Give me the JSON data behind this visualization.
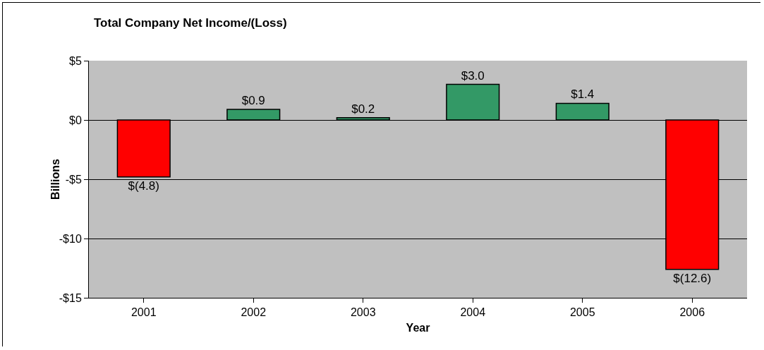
{
  "chart_data": {
    "type": "bar",
    "title": "Total Company Net Income/(Loss)",
    "xlabel": "Year",
    "ylabel": "Billions",
    "categories": [
      "2001",
      "2002",
      "2003",
      "2004",
      "2005",
      "2006"
    ],
    "values": [
      -4.8,
      0.9,
      0.2,
      3.0,
      1.4,
      -12.6
    ],
    "colors": [
      "#ff0000",
      "#339966",
      "#339966",
      "#339966",
      "#339966",
      "#ff0000"
    ],
    "value_labels": [
      "$(4.8)",
      "$0.9",
      "$0.2",
      "$3.0",
      "$1.4",
      "$(12.6)"
    ],
    "ylim": [
      -15,
      5
    ],
    "yticks": [
      {
        "value": -15,
        "label": "-$15"
      },
      {
        "value": -10,
        "label": "-$10"
      },
      {
        "value": -5,
        "label": "-$5"
      },
      {
        "value": 0,
        "label": "$0"
      },
      {
        "value": 5,
        "label": "$5"
      }
    ],
    "grid": "y",
    "legend": false
  }
}
